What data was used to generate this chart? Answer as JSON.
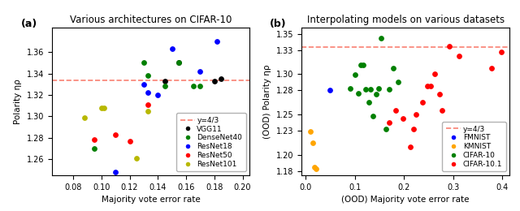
{
  "panel_a": {
    "title": "Various architectures on CIFAR-10",
    "xlabel": "Majority vote error rate",
    "ylabel": "Polarity ηρ",
    "xlim": [
      0.065,
      0.205
    ],
    "ylim": [
      1.245,
      1.383
    ],
    "xticks": [
      0.08,
      0.1,
      0.12,
      0.14,
      0.16,
      0.18,
      0.2
    ],
    "yticks": [
      1.26,
      1.28,
      1.3,
      1.32,
      1.34,
      1.36
    ],
    "hline": 1.3333,
    "label": "(a)",
    "series": {
      "VGG11": {
        "color": "black",
        "x": [
          0.145,
          0.155,
          0.18,
          0.185
        ],
        "y": [
          1.333,
          1.35,
          1.333,
          1.335
        ]
      },
      "DenseNet40": {
        "color": "green",
        "x": [
          0.095,
          0.13,
          0.133,
          0.145,
          0.155,
          0.165,
          0.17
        ],
        "y": [
          1.27,
          1.35,
          1.338,
          1.328,
          1.35,
          1.328,
          1.328
        ]
      },
      "ResNet18": {
        "color": "blue",
        "x": [
          0.11,
          0.13,
          0.133,
          0.14,
          0.15,
          0.17,
          0.182
        ],
        "y": [
          1.248,
          1.33,
          1.322,
          1.32,
          1.363,
          1.342,
          1.37
        ]
      },
      "ResNet50": {
        "color": "red",
        "x": [
          0.095,
          0.11,
          0.12,
          0.133
        ],
        "y": [
          1.278,
          1.283,
          1.277,
          1.311
        ]
      },
      "ResNet101": {
        "color": "#b8b800",
        "x": [
          0.088,
          0.1,
          0.102,
          0.125,
          0.133
        ],
        "y": [
          1.299,
          1.308,
          1.308,
          1.261,
          1.305
        ]
      }
    }
  },
  "panel_b": {
    "title": "Interpolating models on various datasets",
    "xlabel": "(OOD) Majority vote error rate",
    "ylabel": "(OOD) Polarity ηρ",
    "xlim": [
      -0.008,
      0.415
    ],
    "ylim": [
      1.175,
      1.358
    ],
    "xticks": [
      0.0,
      0.1,
      0.2,
      0.3,
      0.4
    ],
    "yticks": [
      1.18,
      1.2,
      1.23,
      1.25,
      1.28,
      1.3,
      1.33,
      1.35
    ],
    "hline": 1.3333,
    "label": "(b)",
    "series": {
      "FMNIST": {
        "color": "blue",
        "x": [
          0.05
        ],
        "y": [
          1.28
        ]
      },
      "KMNIST": {
        "color": "orange",
        "x": [
          0.01,
          0.015,
          0.018,
          0.022
        ],
        "y": [
          1.229,
          1.215,
          1.185,
          1.183
        ]
      },
      "CIFAR-10": {
        "color": "green",
        "x": [
          0.09,
          0.1,
          0.108,
          0.113,
          0.118,
          0.123,
          0.128,
          0.132,
          0.137,
          0.143,
          0.148,
          0.153,
          0.163,
          0.17,
          0.178,
          0.188
        ],
        "y": [
          1.282,
          1.299,
          1.276,
          1.312,
          1.312,
          1.281,
          1.265,
          1.281,
          1.248,
          1.275,
          1.282,
          1.345,
          1.232,
          1.281,
          1.308,
          1.29
        ]
      },
      "CIFAR-10.1": {
        "color": "red",
        "x": [
          0.17,
          0.183,
          0.198,
          0.213,
          0.22,
          0.225,
          0.238,
          0.248,
          0.255,
          0.263,
          0.272,
          0.278,
          0.293,
          0.312,
          0.378,
          0.398
        ],
        "y": [
          1.24,
          1.255,
          1.245,
          1.21,
          1.232,
          1.25,
          1.265,
          1.285,
          1.285,
          1.3,
          1.275,
          1.255,
          1.335,
          1.323,
          1.308,
          1.328
        ]
      }
    }
  }
}
